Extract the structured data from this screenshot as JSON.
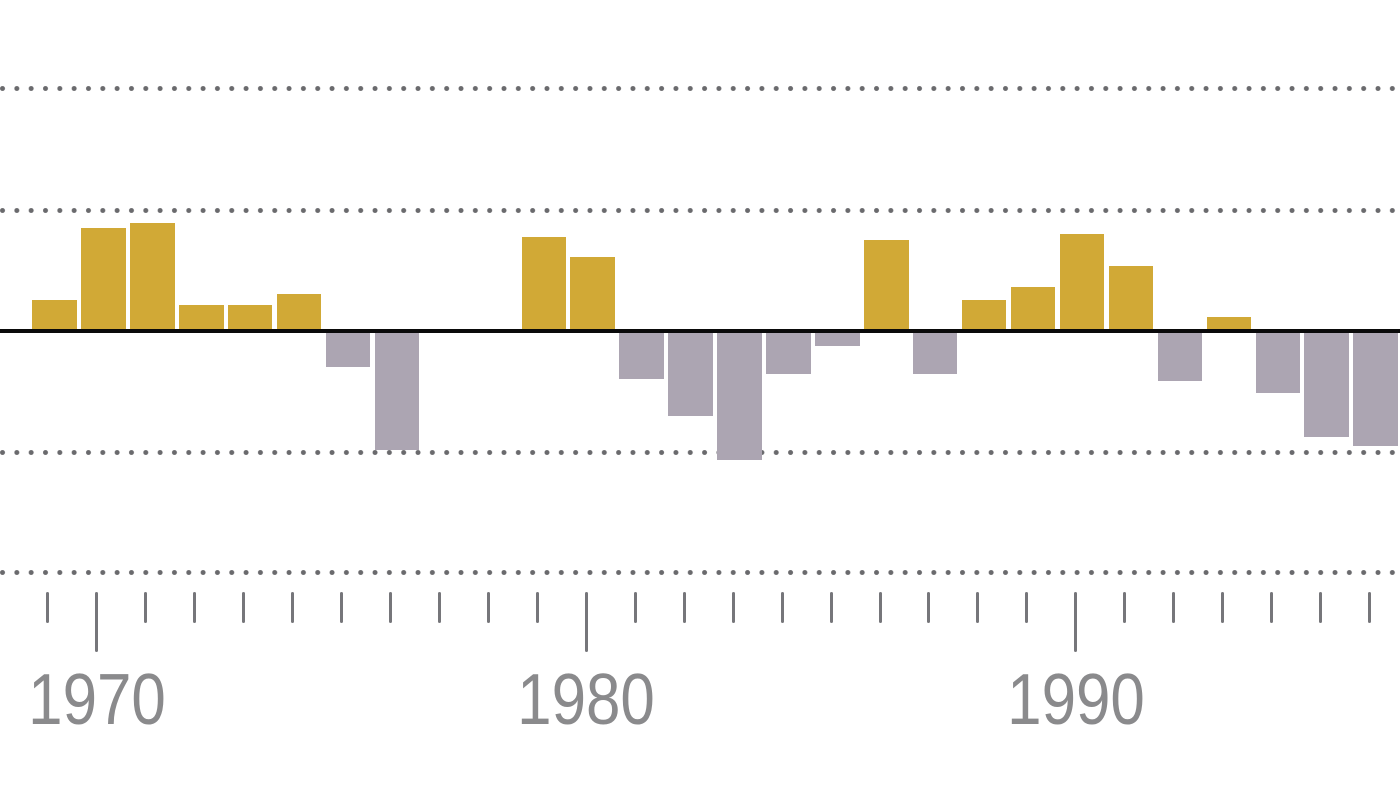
{
  "chart_data": {
    "type": "bar",
    "title": "",
    "xlabel": "",
    "ylabel": "",
    "x": [
      1969,
      1970,
      1971,
      1972,
      1973,
      1974,
      1975,
      1976,
      1977,
      1978,
      1979,
      1980,
      1981,
      1982,
      1983,
      1984,
      1985,
      1986,
      1987,
      1988,
      1989,
      1990,
      1991,
      1992,
      1993,
      1994,
      1995,
      1996
    ],
    "values": [
      0.24,
      0.84,
      0.88,
      0.2,
      0.2,
      0.29,
      -0.28,
      -0.97,
      0,
      0,
      0.76,
      0.6,
      -0.38,
      -0.69,
      -1.05,
      -0.34,
      -0.11,
      0.74,
      -0.34,
      0.24,
      0.35,
      0.79,
      0.52,
      -0.4,
      0.1,
      -0.5,
      -0.86,
      -0.94
    ],
    "x_tick_labels": [
      "1970",
      "1980",
      "1990"
    ],
    "x_tick_every_year": true,
    "baseline": 0,
    "ylim": [
      -2,
      2
    ],
    "y_gridlines": [
      2,
      1,
      -1,
      -2
    ],
    "y_gridline_style": "dotted",
    "y_gridline_labels_shown": false,
    "legend": null,
    "colors": {
      "positive_bar": "#d1a936",
      "negative_bar": "#aca5b2",
      "baseline": "#0a0a0a",
      "gridline_dots": "#6a6a6d",
      "axis_tick": "#76767a",
      "axis_label": "#8a8a8c",
      "background": "#ffffff"
    }
  }
}
